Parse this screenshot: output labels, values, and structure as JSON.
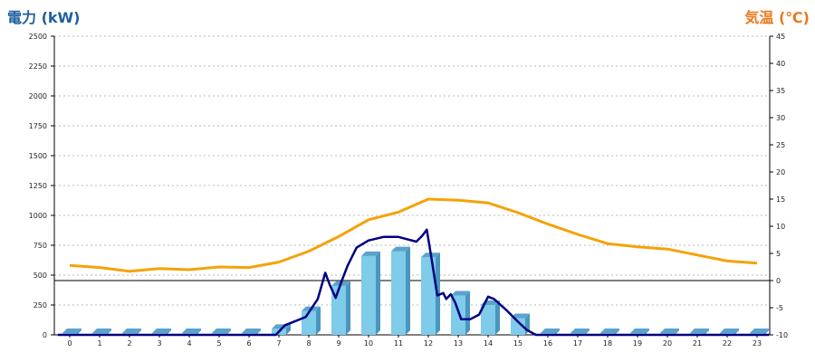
{
  "chart_data": {
    "type": "bar",
    "left_axis_title": "電力 (kW)",
    "right_axis_title": "気温 (℃)",
    "categories": [
      "0",
      "1",
      "2",
      "3",
      "4",
      "5",
      "6",
      "7",
      "8",
      "9",
      "10",
      "11",
      "12",
      "13",
      "14",
      "15",
      "16",
      "17",
      "18",
      "19",
      "20",
      "21",
      "22",
      "23"
    ],
    "ylim_left": [
      0,
      2500
    ],
    "yticks_left": [
      0,
      250,
      500,
      750,
      1000,
      1250,
      1500,
      1750,
      2000,
      2250,
      2500
    ],
    "ylim_right": [
      -10,
      45
    ],
    "yticks_right": [
      -10,
      -5,
      0,
      5,
      10,
      15,
      20,
      25,
      30,
      35,
      40,
      45
    ],
    "grid": true,
    "bars": {
      "axis": "left",
      "color": "#7ecbea",
      "values": [
        15,
        15,
        15,
        15,
        15,
        15,
        15,
        50,
        200,
        410,
        660,
        700,
        650,
        330,
        250,
        140,
        15,
        15,
        15,
        15,
        15,
        15,
        15,
        15
      ]
    },
    "power_line": {
      "axis": "left",
      "color": "#000080",
      "points": [
        [
          -0.4,
          0
        ],
        [
          6.9,
          0
        ],
        [
          7.2,
          80
        ],
        [
          7.6,
          120
        ],
        [
          7.9,
          150
        ],
        [
          8.3,
          300
        ],
        [
          8.55,
          520
        ],
        [
          8.7,
          420
        ],
        [
          8.9,
          310
        ],
        [
          9.1,
          450
        ],
        [
          9.3,
          580
        ],
        [
          9.6,
          730
        ],
        [
          10.0,
          790
        ],
        [
          10.5,
          820
        ],
        [
          11.0,
          820
        ],
        [
          11.3,
          800
        ],
        [
          11.6,
          780
        ],
        [
          11.8,
          830
        ],
        [
          11.95,
          880
        ],
        [
          12.1,
          650
        ],
        [
          12.3,
          330
        ],
        [
          12.5,
          350
        ],
        [
          12.6,
          300
        ],
        [
          12.75,
          340
        ],
        [
          12.9,
          270
        ],
        [
          13.1,
          130
        ],
        [
          13.4,
          130
        ],
        [
          13.7,
          170
        ],
        [
          14.0,
          320
        ],
        [
          14.2,
          300
        ],
        [
          14.6,
          210
        ],
        [
          15.0,
          110
        ],
        [
          15.3,
          40
        ],
        [
          15.6,
          0
        ],
        [
          23.4,
          0
        ]
      ]
    },
    "temperature_line": {
      "axis": "right",
      "color": "#f5a20a",
      "points": [
        [
          0,
          2.8
        ],
        [
          1,
          2.4
        ],
        [
          2,
          1.7
        ],
        [
          3,
          2.2
        ],
        [
          4,
          2.0
        ],
        [
          5,
          2.5
        ],
        [
          6,
          2.4
        ],
        [
          7,
          3.4
        ],
        [
          8,
          5.4
        ],
        [
          9,
          8.1
        ],
        [
          10,
          11.2
        ],
        [
          11,
          12.6
        ],
        [
          12,
          15.0
        ],
        [
          13,
          14.8
        ],
        [
          14,
          14.3
        ],
        [
          15,
          12.5
        ],
        [
          16,
          10.4
        ],
        [
          17,
          8.5
        ],
        [
          18,
          6.8
        ],
        [
          19,
          6.2
        ],
        [
          20,
          5.8
        ],
        [
          21,
          4.7
        ],
        [
          22,
          3.6
        ],
        [
          23,
          3.2
        ]
      ]
    }
  }
}
